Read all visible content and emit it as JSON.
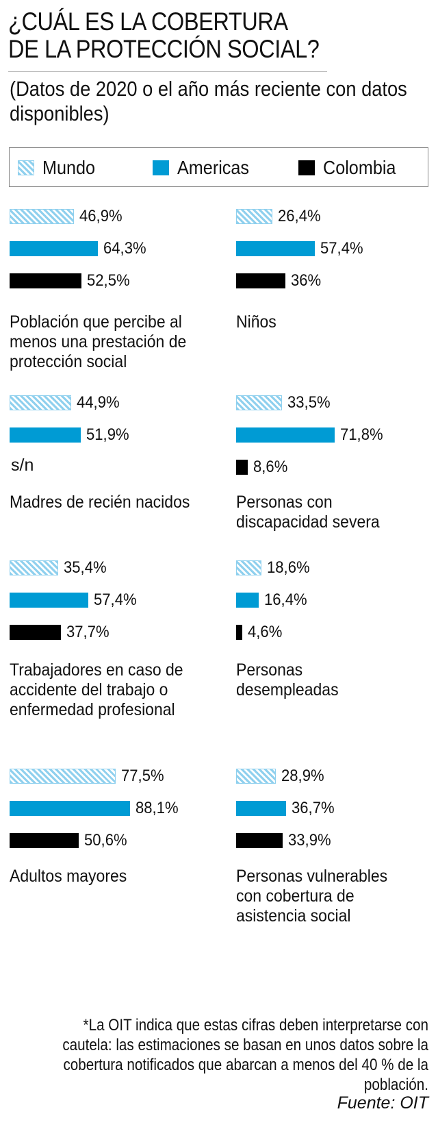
{
  "header": {
    "title_line1": "¿CUÁL ES LA COBERTURA",
    "title_line2": "DE LA PROTECCIÓN SOCIAL?",
    "subtitle": "(Datos de 2020 o el año más reciente con datos disponibles)"
  },
  "legend": [
    {
      "label": "Mundo",
      "color": "#8fd0ee",
      "pattern": "hatched"
    },
    {
      "label": "Americas",
      "color": "#009bd4",
      "pattern": "solid"
    },
    {
      "label": "Colombia",
      "color": "#000000",
      "pattern": "solid"
    }
  ],
  "footnote": "*La OIT indica que estas cifras deben interpretarse con cautela: las estimaciones se basan en unos datos sobre la cobertura notificados que abarcan a menos del 40 % de la población.",
  "source": "Fuente: OIT",
  "chart_data": {
    "type": "bar",
    "orientation": "horizontal",
    "title": "¿CUÁL ES LA COBERTURA DE LA PROTECCIÓN SOCIAL?",
    "subtitle": "(Datos de 2020 o el año más reciente con datos disponibles)",
    "xlabel": "",
    "ylabel": "",
    "unit": "%",
    "xlim": [
      0,
      100
    ],
    "grid": false,
    "legend_position": "top",
    "series_names": [
      "Mundo",
      "Americas",
      "Colombia"
    ],
    "series_colors": [
      "#8fd0ee",
      "#009bd4",
      "#000000"
    ],
    "missing_label": "s/n",
    "categories": [
      {
        "label": "Población que percibe al menos una prestación de protección social",
        "values": [
          46.9,
          64.3,
          52.5
        ],
        "labels": [
          "46,9%",
          "64,3%",
          "52,5%"
        ]
      },
      {
        "label": "Niños",
        "values": [
          26.4,
          57.4,
          36
        ],
        "labels": [
          "26,4%",
          "57,4%",
          "36%"
        ]
      },
      {
        "label": "Madres de recién nacidos",
        "values": [
          44.9,
          51.9,
          null
        ],
        "labels": [
          "44,9%",
          "51,9%",
          "s/n"
        ]
      },
      {
        "label": "Personas con discapacidad severa",
        "values": [
          33.5,
          71.8,
          8.6
        ],
        "labels": [
          "33,5%",
          "71,8%",
          "8,6%"
        ]
      },
      {
        "label": "Trabajadores en caso de accidente del trabajo o enfermedad profesional",
        "values": [
          35.4,
          57.4,
          37.7
        ],
        "labels": [
          "35,4%",
          "57,4%",
          "37,7%"
        ]
      },
      {
        "label": "Personas desempleadas",
        "values": [
          18.6,
          16.4,
          4.6
        ],
        "labels": [
          "18,6%",
          "16,4%",
          "4,6%"
        ]
      },
      {
        "label": "Adultos mayores",
        "values": [
          77.5,
          88.1,
          50.6
        ],
        "labels": [
          "77,5%",
          "88,1%",
          "50,6%"
        ]
      },
      {
        "label": "Personas vulnerables con cobertura de asistencia social",
        "values": [
          28.9,
          36.7,
          33.9
        ],
        "labels": [
          "28,9%",
          "36,7%",
          "33,9%"
        ]
      }
    ]
  }
}
